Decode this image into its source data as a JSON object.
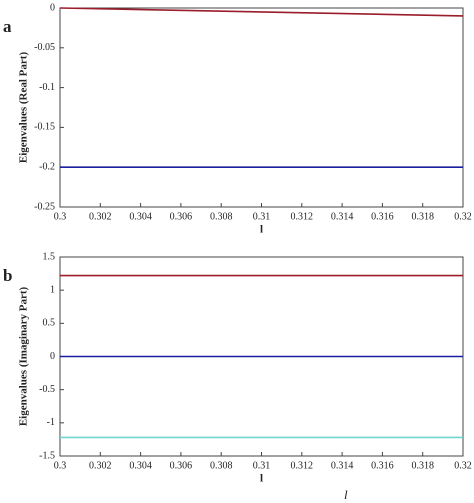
{
  "chart_data": [
    {
      "type": "line",
      "panel_label": "a",
      "xlabel": "l",
      "ylabel": "Eigenvalues (Real Part)",
      "x": [
        0.3,
        0.32
      ],
      "series": [
        {
          "color": "#9b1c2a",
          "values": [
            0,
            -0.01
          ]
        },
        {
          "color": "#1c1ca0",
          "values": [
            -0.2,
            -0.2
          ]
        }
      ],
      "xlim": [
        0.3,
        0.32
      ],
      "xticks": [
        0.3,
        0.302,
        0.304,
        0.306,
        0.308,
        0.31,
        0.312,
        0.314,
        0.316,
        0.318,
        0.32
      ],
      "ylim": [
        -0.25,
        0
      ],
      "yticks": [
        0,
        -0.05,
        -0.1,
        -0.15,
        -0.2,
        -0.25
      ]
    },
    {
      "type": "line",
      "panel_label": "b",
      "xlabel": "l",
      "ylabel": "Eigenvalues (Imaginary Part)",
      "x": [
        0.3,
        0.32
      ],
      "series": [
        {
          "color": "#9b1c2a",
          "values": [
            1.22,
            1.22
          ]
        },
        {
          "color": "#1c1ca0",
          "values": [
            0,
            0
          ]
        },
        {
          "color": "#6fd6d0",
          "values": [
            -1.22,
            -1.22
          ]
        }
      ],
      "xlim": [
        0.3,
        0.32
      ],
      "xticks": [
        0.3,
        0.302,
        0.304,
        0.306,
        0.308,
        0.31,
        0.312,
        0.314,
        0.316,
        0.318,
        0.32
      ],
      "ylim": [
        -1.5,
        1.5
      ],
      "yticks": [
        1.5,
        1,
        0.5,
        0,
        -0.5,
        -1,
        -1.5
      ]
    }
  ],
  "caption_fragment": "l"
}
